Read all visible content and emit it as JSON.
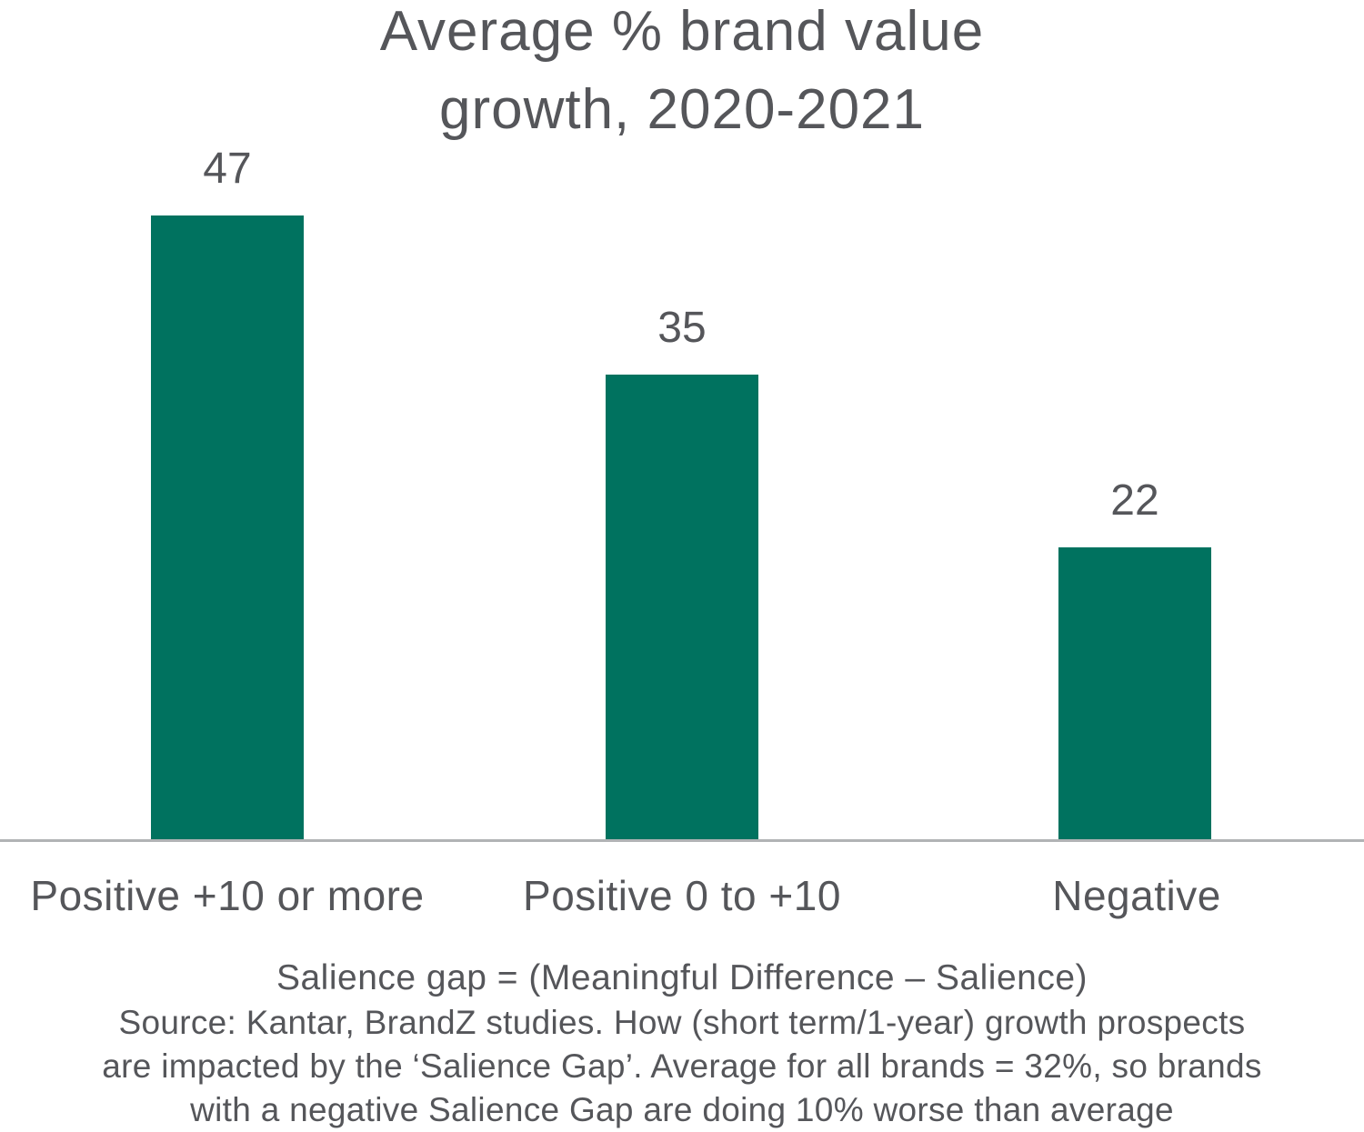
{
  "title": {
    "lines": [
      "Average % brand value",
      "growth, 2020-2021"
    ]
  },
  "chart_data": {
    "type": "bar",
    "title": "Average % brand value growth, 2020-2021",
    "categories": [
      "Positive +10 or more",
      "Positive 0 to +10",
      "Negative"
    ],
    "values": [
      47,
      35,
      22
    ],
    "xlabel": "",
    "ylabel": "",
    "ylim": [
      0,
      50
    ],
    "grid": false,
    "legend": false,
    "data_labels": true,
    "bar_color": "#00725F",
    "axis_line_color": "#B1B3B5",
    "text_color": "#55565A"
  },
  "footer": {
    "lines": [
      "Salience gap = (Meaningful Difference – Salience)",
      "Source: Kantar, BrandZ studies. How (short term/1-year) growth prospects",
      "are impacted by the ‘Salience Gap’.  Average for all brands = 32%, so brands",
      "with a negative Salience Gap are doing 10% worse than average"
    ]
  }
}
